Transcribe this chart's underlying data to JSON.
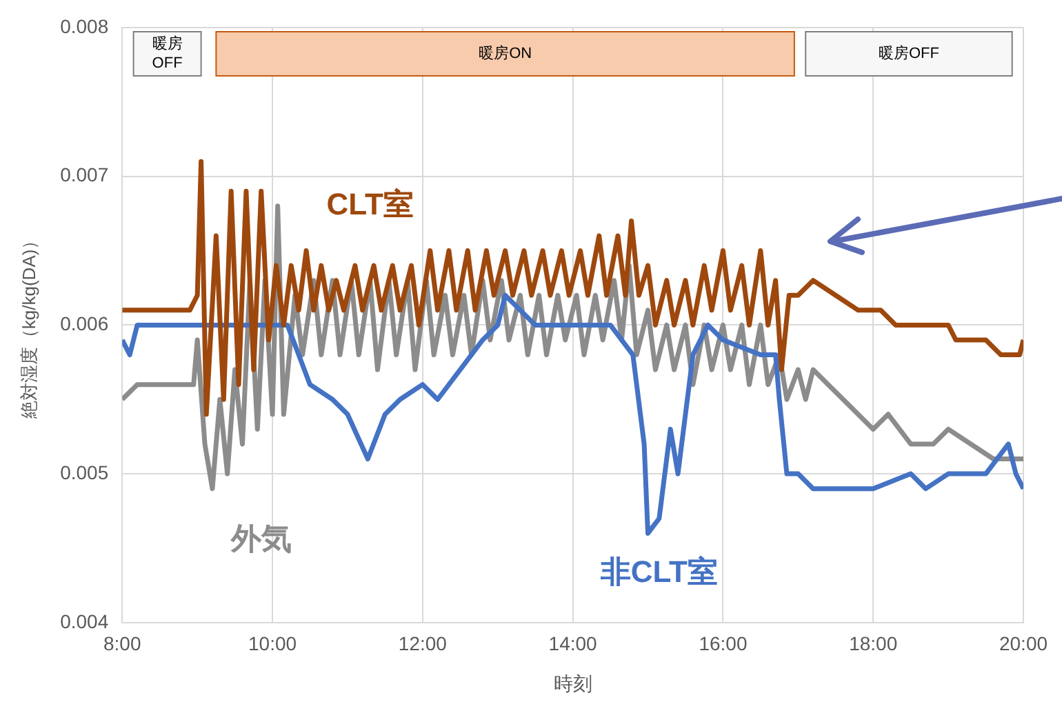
{
  "chart_data": {
    "type": "line",
    "xlabel": "時刻",
    "ylabel": "絶対湿度（kg/kg(DA)）",
    "xlim": [
      8,
      20
    ],
    "xticks": [
      {
        "value": 8,
        "label": "8:00"
      },
      {
        "value": 10,
        "label": "10:00"
      },
      {
        "value": 12,
        "label": "12:00"
      },
      {
        "value": 14,
        "label": "14:00"
      },
      {
        "value": 16,
        "label": "16:00"
      },
      {
        "value": 18,
        "label": "18:00"
      },
      {
        "value": 20,
        "label": "20:00"
      }
    ],
    "ylim": [
      0.004,
      0.008
    ],
    "yticks": [
      0.004,
      0.005,
      0.006,
      0.007,
      0.008
    ],
    "grid": true,
    "legend": false,
    "marker": "none",
    "line_style": "solid",
    "bands": [
      {
        "axis": "x",
        "from": 8.15,
        "to": 9.05,
        "label": "暖房OFF",
        "color": "#f7f7f7"
      },
      {
        "axis": "x",
        "from": 9.25,
        "to": 16.95,
        "label": "暖房ON",
        "color": "#f8cbad"
      },
      {
        "axis": "x",
        "from": 17.1,
        "to": 19.85,
        "label": "暖房OFF",
        "color": "#f7f7f7"
      }
    ],
    "series": [
      {
        "name": "外気",
        "color": "#8c8c8c",
        "x": [
          8,
          8.2,
          8.95,
          9.0,
          9.1,
          9.2,
          9.3,
          9.4,
          9.5,
          9.6,
          9.7,
          9.8,
          9.9,
          10.0,
          10.07,
          10.15,
          10.3,
          10.4,
          10.55,
          10.65,
          10.8,
          10.9,
          11.05,
          11.15,
          11.3,
          11.4,
          11.55,
          11.65,
          11.8,
          11.9,
          12.05,
          12.15,
          12.3,
          12.4,
          12.55,
          12.65,
          12.8,
          12.9,
          13.05,
          13.15,
          13.3,
          13.4,
          13.55,
          13.65,
          13.8,
          13.9,
          14.05,
          14.15,
          14.3,
          14.4,
          14.55,
          14.65,
          14.75,
          14.85,
          15.0,
          15.1,
          15.25,
          15.35,
          15.5,
          15.6,
          15.75,
          15.85,
          16.0,
          16.1,
          16.25,
          16.35,
          16.5,
          16.6,
          16.75,
          16.85,
          17.0,
          17.1,
          17.2,
          17.4,
          17.6,
          18.0,
          18.2,
          18.5,
          18.8,
          19.0,
          19.3,
          19.6,
          20
        ],
        "values": [
          0.0055,
          0.0056,
          0.0056,
          0.0059,
          0.0052,
          0.0049,
          0.0055,
          0.005,
          0.0057,
          0.0052,
          0.0063,
          0.0053,
          0.0063,
          0.0054,
          0.0068,
          0.0054,
          0.0062,
          0.0058,
          0.0063,
          0.0058,
          0.0063,
          0.0058,
          0.0063,
          0.0058,
          0.0063,
          0.0057,
          0.0063,
          0.0058,
          0.0063,
          0.0057,
          0.0063,
          0.0058,
          0.0062,
          0.0058,
          0.0062,
          0.0058,
          0.0063,
          0.0059,
          0.0063,
          0.0059,
          0.0062,
          0.0058,
          0.0062,
          0.0058,
          0.0062,
          0.0059,
          0.0062,
          0.0058,
          0.0062,
          0.0059,
          0.0063,
          0.0059,
          0.0064,
          0.0058,
          0.0061,
          0.0057,
          0.006,
          0.0057,
          0.006,
          0.0056,
          0.006,
          0.0057,
          0.006,
          0.0057,
          0.006,
          0.0056,
          0.006,
          0.0056,
          0.0058,
          0.0055,
          0.0057,
          0.0055,
          0.0057,
          0.0056,
          0.0055,
          0.0053,
          0.0054,
          0.0052,
          0.0052,
          0.0053,
          0.0052,
          0.0051,
          0.0051
        ]
      },
      {
        "name": "非CLT室",
        "color": "#4472c4",
        "x": [
          8,
          8.1,
          8.2,
          8.5,
          9.0,
          9.5,
          10.0,
          10.2,
          10.5,
          10.8,
          11.0,
          11.27,
          11.5,
          11.7,
          12.0,
          12.2,
          12.5,
          12.8,
          13.0,
          13.1,
          13.3,
          13.5,
          14.0,
          14.5,
          14.8,
          14.95,
          15.0,
          15.15,
          15.3,
          15.4,
          15.6,
          15.8,
          16.0,
          16.5,
          16.7,
          16.75,
          16.85,
          17.0,
          17.2,
          17.5,
          18.0,
          18.5,
          18.7,
          19.0,
          19.5,
          19.8,
          19.9,
          20
        ],
        "values": [
          0.0059,
          0.0058,
          0.006,
          0.006,
          0.006,
          0.006,
          0.006,
          0.006,
          0.0056,
          0.0055,
          0.0054,
          0.0051,
          0.0054,
          0.0055,
          0.0056,
          0.0055,
          0.0057,
          0.0059,
          0.006,
          0.0062,
          0.0061,
          0.006,
          0.006,
          0.006,
          0.0058,
          0.0052,
          0.0046,
          0.0047,
          0.0053,
          0.005,
          0.0058,
          0.006,
          0.0059,
          0.0058,
          0.0058,
          0.0055,
          0.005,
          0.005,
          0.0049,
          0.0049,
          0.0049,
          0.005,
          0.0049,
          0.005,
          0.005,
          0.0052,
          0.005,
          0.0049
        ]
      },
      {
        "name": "CLT室",
        "color": "#9e480e",
        "x": [
          8,
          8.9,
          9.0,
          9.05,
          9.12,
          9.25,
          9.35,
          9.45,
          9.55,
          9.65,
          9.75,
          9.85,
          9.95,
          10.05,
          10.15,
          10.25,
          10.35,
          10.45,
          10.55,
          10.65,
          10.75,
          10.85,
          10.95,
          11.1,
          11.2,
          11.35,
          11.45,
          11.6,
          11.7,
          11.85,
          11.95,
          12.1,
          12.2,
          12.35,
          12.45,
          12.6,
          12.7,
          12.85,
          12.95,
          13.1,
          13.2,
          13.35,
          13.45,
          13.6,
          13.7,
          13.85,
          13.95,
          14.1,
          14.2,
          14.35,
          14.45,
          14.6,
          14.7,
          14.78,
          14.88,
          15.0,
          15.1,
          15.25,
          15.35,
          15.5,
          15.6,
          15.75,
          15.85,
          16.0,
          16.1,
          16.25,
          16.35,
          16.5,
          16.6,
          16.7,
          16.78,
          16.88,
          17.0,
          17.2,
          17.5,
          17.8,
          18.1,
          18.3,
          18.7,
          19.0,
          19.1,
          19.5,
          19.7,
          19.95,
          20
        ],
        "values": [
          0.0061,
          0.0061,
          0.0062,
          0.0071,
          0.0054,
          0.0066,
          0.0055,
          0.0069,
          0.0056,
          0.0069,
          0.0057,
          0.0069,
          0.0059,
          0.0064,
          0.006,
          0.0064,
          0.0061,
          0.0065,
          0.0061,
          0.0064,
          0.0061,
          0.0063,
          0.0061,
          0.0064,
          0.0061,
          0.0064,
          0.0061,
          0.0064,
          0.0061,
          0.0064,
          0.006,
          0.0065,
          0.0061,
          0.0065,
          0.0061,
          0.0065,
          0.0061,
          0.0065,
          0.0062,
          0.0065,
          0.0062,
          0.0065,
          0.0062,
          0.0065,
          0.0062,
          0.0065,
          0.0062,
          0.0065,
          0.0062,
          0.0066,
          0.0062,
          0.0066,
          0.0062,
          0.0067,
          0.0062,
          0.0064,
          0.006,
          0.0063,
          0.006,
          0.0063,
          0.006,
          0.0064,
          0.0061,
          0.0065,
          0.0061,
          0.0064,
          0.006,
          0.0065,
          0.006,
          0.0063,
          0.0057,
          0.0062,
          0.0062,
          0.0063,
          0.0062,
          0.0061,
          0.0061,
          0.006,
          0.006,
          0.006,
          0.0059,
          0.0059,
          0.0058,
          0.0058,
          0.0059
        ]
      }
    ]
  }
}
